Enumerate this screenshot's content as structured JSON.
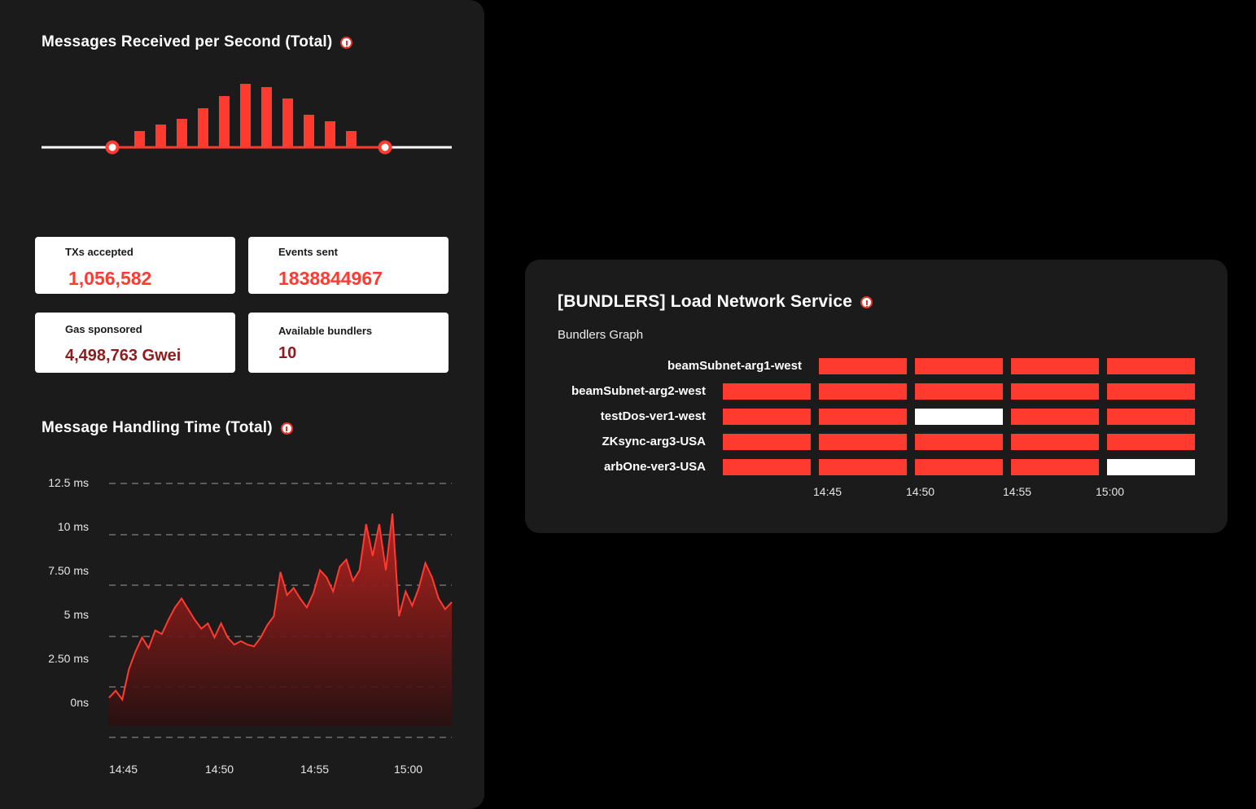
{
  "colors": {
    "accent": "#ff3b30",
    "dark_red": "#8e1b1e",
    "panel": "#1b1b1b",
    "white": "#ffffff"
  },
  "messages_panel": {
    "title": "Messages Received per Second (Total)",
    "info_icon": "info-icon",
    "bar_values": [
      20,
      28,
      35,
      48,
      63,
      78,
      74,
      60,
      40,
      32,
      20
    ]
  },
  "stats": {
    "txs_accepted": {
      "label": "TXs accepted",
      "value": "1,056,582"
    },
    "events_sent": {
      "label": "Events sent",
      "value": "1838844967"
    },
    "gas_sponsored": {
      "label": "Gas sponsored",
      "value": "4,498,763 Gwei"
    },
    "available_bundlers": {
      "label": "Available bundlers",
      "value": "10"
    }
  },
  "handling_chart": {
    "title": "Message Handling Time (Total)",
    "y_ticks": [
      "12.5 ms",
      "10 ms",
      "7.50 ms",
      "5 ms",
      "2.50 ms",
      "0ns"
    ],
    "x_ticks": [
      "14:45",
      "14:50",
      "14:55",
      "15:00"
    ]
  },
  "chart_data": {
    "type": "area",
    "title": "Message Handling Time (Total)",
    "xlabel": "",
    "ylabel": "",
    "x_ticks": [
      "14:45",
      "14:50",
      "14:55",
      "15:00"
    ],
    "y_ticks": [
      "12.5 ms",
      "10 ms",
      "7.50 ms",
      "5 ms",
      "2.50 ms",
      "0ns"
    ],
    "ylim": [
      0,
      12.5
    ],
    "series": [
      {
        "values": [
          0.4,
          0.8,
          0.3,
          2.0,
          3.0,
          3.8,
          3.2,
          4.2,
          4.0,
          4.8,
          5.5,
          6.0,
          5.4,
          4.8,
          4.3,
          4.6,
          3.8,
          4.6,
          3.8,
          3.4,
          3.6,
          3.4,
          3.3,
          3.8,
          4.5,
          5.0,
          7.5,
          6.2,
          6.6,
          6.0,
          5.5,
          6.3,
          7.6,
          7.2,
          6.4,
          7.8,
          8.2,
          7.0,
          7.6,
          10.2,
          8.4,
          10.2,
          7.6,
          10.8,
          5.0,
          6.4,
          5.6,
          6.6,
          8.0,
          7.2,
          6.0,
          5.4,
          5.8
        ]
      }
    ]
  },
  "bundlers_panel": {
    "title": "[BUNDLERS] Load Network Service",
    "subtitle": "Bundlers Graph",
    "rows": [
      {
        "label": "beamSubnet-arg1-west",
        "cells": [
          "none",
          "red",
          "red",
          "red",
          "red"
        ]
      },
      {
        "label": "beamSubnet-arg2-west",
        "cells": [
          "red",
          "red",
          "red",
          "red",
          "red"
        ]
      },
      {
        "label": "testDos-ver1-west",
        "cells": [
          "red",
          "red",
          "white",
          "red",
          "red"
        ]
      },
      {
        "label": "ZKsync-arg3-USA",
        "cells": [
          "red",
          "red",
          "red",
          "red",
          "red"
        ]
      },
      {
        "label": "arbOne-ver3-USA",
        "cells": [
          "red",
          "red",
          "red",
          "red",
          "white"
        ]
      }
    ],
    "x_ticks": [
      "14:45",
      "14:50",
      "14:55",
      "15:00"
    ]
  }
}
